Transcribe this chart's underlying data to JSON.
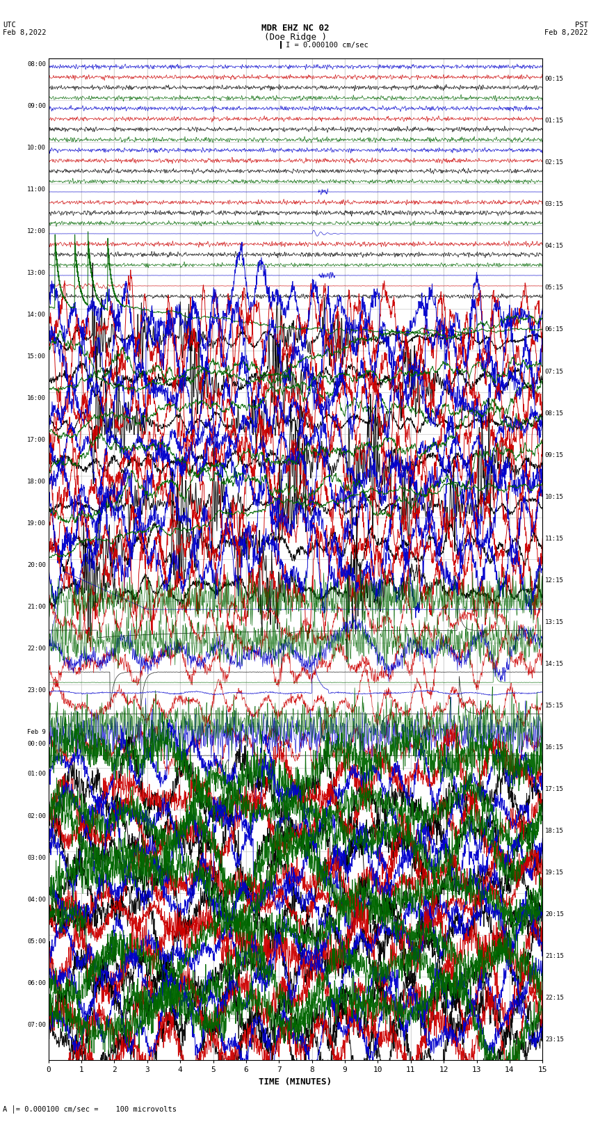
{
  "title_line1": "MDR EHZ NC 02",
  "title_line2": "(Doe Ridge )",
  "scale_label": "I = 0.000100 cm/sec",
  "xlabel": "TIME (MINUTES)",
  "bottom_label": "A│= 0.000100 cm/sec =    100 microvolts",
  "left_times": [
    "08:00",
    "09:00",
    "10:00",
    "11:00",
    "12:00",
    "13:00",
    "14:00",
    "15:00",
    "16:00",
    "17:00",
    "18:00",
    "19:00",
    "20:00",
    "21:00",
    "22:00",
    "23:00",
    "Feb 9\n00:00",
    "01:00",
    "02:00",
    "03:00",
    "04:00",
    "05:00",
    "06:00",
    "07:00"
  ],
  "right_times": [
    "00:15",
    "01:15",
    "02:15",
    "03:15",
    "04:15",
    "05:15",
    "06:15",
    "07:15",
    "08:15",
    "09:15",
    "10:15",
    "11:15",
    "12:15",
    "13:15",
    "14:15",
    "15:15",
    "16:15",
    "17:15",
    "18:15",
    "19:15",
    "20:15",
    "21:15",
    "22:15",
    "23:15"
  ],
  "n_rows": 24,
  "n_minutes": 15,
  "bg_color": "#ffffff",
  "grid_color": "#bbbbbb",
  "col_black": "#000000",
  "col_red": "#cc0000",
  "col_blue": "#0000cc",
  "col_green": "#006600",
  "samples_per_minute": 100
}
